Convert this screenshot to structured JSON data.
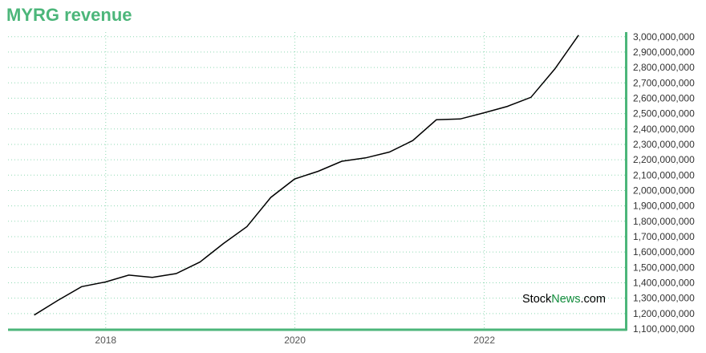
{
  "title": "MYRG revenue",
  "watermark": {
    "part1": "Stock",
    "part2": "News",
    "part3": ".com"
  },
  "colors": {
    "title": "#4cb67a",
    "axis": "#4cb67a",
    "grid": "#8fd9b3",
    "line": "#000000"
  },
  "chart_data": {
    "type": "line",
    "title": "MYRG revenue",
    "xlabel": "",
    "ylabel": "",
    "grid": true,
    "x_ticks": [
      "2018",
      "2020",
      "2022"
    ],
    "y_ticks": [
      1100000000,
      1200000000,
      1300000000,
      1400000000,
      1500000000,
      1600000000,
      1700000000,
      1800000000,
      1900000000,
      2000000000,
      2100000000,
      2200000000,
      2300000000,
      2400000000,
      2500000000,
      2600000000,
      2700000000,
      2800000000,
      2900000000,
      3000000000
    ],
    "ylim": [
      1100000000,
      3030000000
    ],
    "xlim": [
      "2016-12-20",
      "2023-07-01"
    ],
    "series": [
      {
        "x": [
          "2017-03-31",
          "2017-06-30",
          "2017-09-30",
          "2017-12-31",
          "2018-03-31",
          "2018-06-30",
          "2018-09-30",
          "2018-12-31",
          "2019-03-31",
          "2019-06-30",
          "2019-09-30",
          "2019-12-31",
          "2020-03-31",
          "2020-06-30",
          "2020-09-30",
          "2020-12-31",
          "2021-03-31",
          "2021-06-30",
          "2021-09-30",
          "2021-12-31",
          "2022-03-31",
          "2022-06-30",
          "2022-09-30",
          "2022-12-31"
        ],
        "values": [
          1190000000,
          1285000000,
          1375000000,
          1405000000,
          1450000000,
          1435000000,
          1460000000,
          1535000000,
          1655000000,
          1765000000,
          1955000000,
          2075000000,
          2125000000,
          2190000000,
          2212000000,
          2250000000,
          2325000000,
          2460000000,
          2465000000,
          2505000000,
          2547000000,
          2606000000,
          2790000000,
          3010000000
        ]
      }
    ]
  }
}
